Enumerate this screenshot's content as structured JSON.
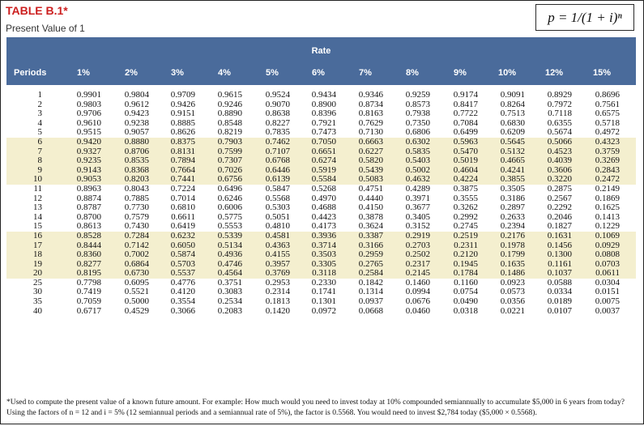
{
  "title": "TABLE B.1*",
  "subtitle": "Present Value of 1",
  "formula": "p = 1/(1 + i)ⁿ",
  "rate_label": "Rate",
  "periods_label": "Periods",
  "rates": [
    "1%",
    "2%",
    "3%",
    "4%",
    "5%",
    "6%",
    "7%",
    "8%",
    "9%",
    "10%",
    "12%",
    "15%"
  ],
  "rows": [
    {
      "period": "1",
      "values": [
        "0.9901",
        "0.9804",
        "0.9709",
        "0.9615",
        "0.9524",
        "0.9434",
        "0.9346",
        "0.9259",
        "0.9174",
        "0.9091",
        "0.8929",
        "0.8696"
      ]
    },
    {
      "period": "2",
      "values": [
        "0.9803",
        "0.9612",
        "0.9426",
        "0.9246",
        "0.9070",
        "0.8900",
        "0.8734",
        "0.8573",
        "0.8417",
        "0.8264",
        "0.7972",
        "0.7561"
      ]
    },
    {
      "period": "3",
      "values": [
        "0.9706",
        "0.9423",
        "0.9151",
        "0.8890",
        "0.8638",
        "0.8396",
        "0.8163",
        "0.7938",
        "0.7722",
        "0.7513",
        "0.7118",
        "0.6575"
      ]
    },
    {
      "period": "4",
      "values": [
        "0.9610",
        "0.9238",
        "0.8885",
        "0.8548",
        "0.8227",
        "0.7921",
        "0.7629",
        "0.7350",
        "0.7084",
        "0.6830",
        "0.6355",
        "0.5718"
      ]
    },
    {
      "period": "5",
      "values": [
        "0.9515",
        "0.9057",
        "0.8626",
        "0.8219",
        "0.7835",
        "0.7473",
        "0.7130",
        "0.6806",
        "0.6499",
        "0.6209",
        "0.5674",
        "0.4972"
      ]
    },
    {
      "period": "6",
      "values": [
        "0.9420",
        "0.8880",
        "0.8375",
        "0.7903",
        "0.7462",
        "0.7050",
        "0.6663",
        "0.6302",
        "0.5963",
        "0.5645",
        "0.5066",
        "0.4323"
      ]
    },
    {
      "period": "7",
      "values": [
        "0.9327",
        "0.8706",
        "0.8131",
        "0.7599",
        "0.7107",
        "0.6651",
        "0.6227",
        "0.5835",
        "0.5470",
        "0.5132",
        "0.4523",
        "0.3759"
      ]
    },
    {
      "period": "8",
      "values": [
        "0.9235",
        "0.8535",
        "0.7894",
        "0.7307",
        "0.6768",
        "0.6274",
        "0.5820",
        "0.5403",
        "0.5019",
        "0.4665",
        "0.4039",
        "0.3269"
      ]
    },
    {
      "period": "9",
      "values": [
        "0.9143",
        "0.8368",
        "0.7664",
        "0.7026",
        "0.6446",
        "0.5919",
        "0.5439",
        "0.5002",
        "0.4604",
        "0.4241",
        "0.3606",
        "0.2843"
      ]
    },
    {
      "period": "10",
      "values": [
        "0.9053",
        "0.8203",
        "0.7441",
        "0.6756",
        "0.6139",
        "0.5584",
        "0.5083",
        "0.4632",
        "0.4224",
        "0.3855",
        "0.3220",
        "0.2472"
      ]
    },
    {
      "period": "11",
      "values": [
        "0.8963",
        "0.8043",
        "0.7224",
        "0.6496",
        "0.5847",
        "0.5268",
        "0.4751",
        "0.4289",
        "0.3875",
        "0.3505",
        "0.2875",
        "0.2149"
      ]
    },
    {
      "period": "12",
      "values": [
        "0.8874",
        "0.7885",
        "0.7014",
        "0.6246",
        "0.5568",
        "0.4970",
        "0.4440",
        "0.3971",
        "0.3555",
        "0.3186",
        "0.2567",
        "0.1869"
      ]
    },
    {
      "period": "13",
      "values": [
        "0.8787",
        "0.7730",
        "0.6810",
        "0.6006",
        "0.5303",
        "0.4688",
        "0.4150",
        "0.3677",
        "0.3262",
        "0.2897",
        "0.2292",
        "0.1625"
      ]
    },
    {
      "period": "14",
      "values": [
        "0.8700",
        "0.7579",
        "0.6611",
        "0.5775",
        "0.5051",
        "0.4423",
        "0.3878",
        "0.3405",
        "0.2992",
        "0.2633",
        "0.2046",
        "0.1413"
      ]
    },
    {
      "period": "15",
      "values": [
        "0.8613",
        "0.7430",
        "0.6419",
        "0.5553",
        "0.4810",
        "0.4173",
        "0.3624",
        "0.3152",
        "0.2745",
        "0.2394",
        "0.1827",
        "0.1229"
      ]
    },
    {
      "period": "16",
      "values": [
        "0.8528",
        "0.7284",
        "0.6232",
        "0.5339",
        "0.4581",
        "0.3936",
        "0.3387",
        "0.2919",
        "0.2519",
        "0.2176",
        "0.1631",
        "0.1069"
      ]
    },
    {
      "period": "17",
      "values": [
        "0.8444",
        "0.7142",
        "0.6050",
        "0.5134",
        "0.4363",
        "0.3714",
        "0.3166",
        "0.2703",
        "0.2311",
        "0.1978",
        "0.1456",
        "0.0929"
      ]
    },
    {
      "period": "18",
      "values": [
        "0.8360",
        "0.7002",
        "0.5874",
        "0.4936",
        "0.4155",
        "0.3503",
        "0.2959",
        "0.2502",
        "0.2120",
        "0.1799",
        "0.1300",
        "0.0808"
      ]
    },
    {
      "period": "19",
      "values": [
        "0.8277",
        "0.6864",
        "0.5703",
        "0.4746",
        "0.3957",
        "0.3305",
        "0.2765",
        "0.2317",
        "0.1945",
        "0.1635",
        "0.1161",
        "0.0703"
      ]
    },
    {
      "period": "20",
      "values": [
        "0.8195",
        "0.6730",
        "0.5537",
        "0.4564",
        "0.3769",
        "0.3118",
        "0.2584",
        "0.2145",
        "0.1784",
        "0.1486",
        "0.1037",
        "0.0611"
      ]
    },
    {
      "period": "25",
      "values": [
        "0.7798",
        "0.6095",
        "0.4776",
        "0.3751",
        "0.2953",
        "0.2330",
        "0.1842",
        "0.1460",
        "0.1160",
        "0.0923",
        "0.0588",
        "0.0304"
      ]
    },
    {
      "period": "30",
      "values": [
        "0.7419",
        "0.5521",
        "0.4120",
        "0.3083",
        "0.2314",
        "0.1741",
        "0.1314",
        "0.0994",
        "0.0754",
        "0.0573",
        "0.0334",
        "0.0151"
      ]
    },
    {
      "period": "35",
      "values": [
        "0.7059",
        "0.5000",
        "0.3554",
        "0.2534",
        "0.1813",
        "0.1301",
        "0.0937",
        "0.0676",
        "0.0490",
        "0.0356",
        "0.0189",
        "0.0075"
      ]
    },
    {
      "period": "40",
      "values": [
        "0.6717",
        "0.4529",
        "0.3066",
        "0.2083",
        "0.1420",
        "0.0972",
        "0.0668",
        "0.0460",
        "0.0318",
        "0.0221",
        "0.0107",
        "0.0037"
      ]
    }
  ],
  "footnote": "*Used to compute the present value of a known future amount. For example: How much would you need to invest today at 10% compounded semiannually to accumulate $5,000 in 6 years from today? Using the factors of n = 12 and i = 5% (12 semiannual periods and a semiannual rate of 5%), the factor is 0.5568. You would need to invest $2,784 today ($5,000 × 0.5568).",
  "colors": {
    "header_band": "#4a6b9b",
    "shade": "#f4efcf",
    "title": "#cc1f1f"
  }
}
